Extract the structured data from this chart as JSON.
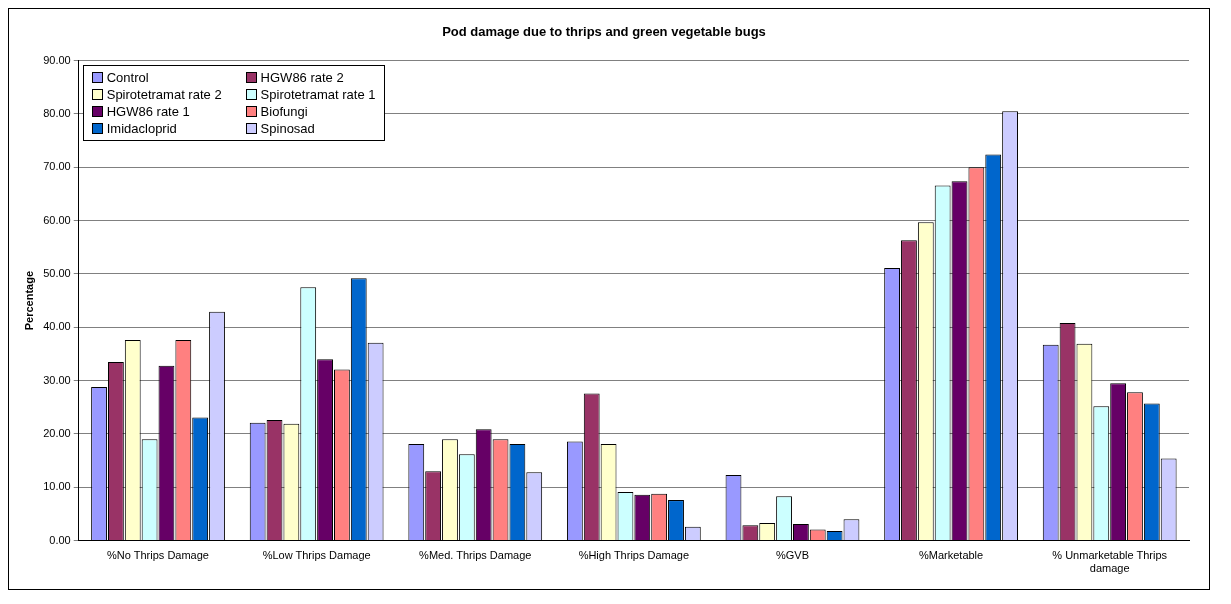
{
  "chart_data": {
    "type": "bar",
    "title": "Pod damage due to thrips and green vegetable bugs",
    "ylabel": "Percentage",
    "categories": [
      "%No Thrips Damage",
      "%Low Thrips Damage",
      "%Med. Thrips Damage",
      "%High Thrips Damage",
      "%GVB",
      "%Marketable",
      "% Unmarketable Thrips damage"
    ],
    "series": [
      {
        "name": "Control",
        "color": "#9999ff",
        "values": [
          28.8,
          22.1,
          18.1,
          18.6,
          12.3,
          51.1,
          36.7
        ]
      },
      {
        "name": "HGW86 rate 2",
        "color": "#993366",
        "values": [
          33.5,
          22.6,
          13.0,
          27.6,
          2.9,
          56.3,
          40.8
        ]
      },
      {
        "name": "Spirotetramat rate 2",
        "color": "#ffffcc",
        "values": [
          37.6,
          21.9,
          19.0,
          18.1,
          3.3,
          59.7,
          36.9
        ]
      },
      {
        "name": "Spirotetramat rate 1",
        "color": "#ccffff",
        "values": [
          19.0,
          47.5,
          16.2,
          9.1,
          8.3,
          66.6,
          25.2
        ]
      },
      {
        "name": "HGW86 rate 1",
        "color": "#660066",
        "values": [
          32.8,
          34.0,
          20.9,
          8.6,
          3.1,
          67.4,
          29.5
        ]
      },
      {
        "name": "Biofungi",
        "color": "#ff8080",
        "values": [
          37.6,
          32.1,
          19.0,
          8.8,
          2.1,
          70.0,
          27.8
        ]
      },
      {
        "name": "Imidacloprid",
        "color": "#0066cc",
        "values": [
          23.1,
          49.2,
          18.1,
          7.6,
          1.8,
          72.4,
          25.7
        ]
      },
      {
        "name": "Spinosad",
        "color": "#ccccff",
        "values": [
          42.9,
          37.1,
          12.8,
          2.6,
          4.0,
          80.5,
          15.4
        ]
      }
    ],
    "ylim": [
      0,
      90
    ],
    "yticks": [
      {
        "value": 0,
        "label": "0.00"
      },
      {
        "value": 10,
        "label": "10.00"
      },
      {
        "value": 20,
        "label": "20.00"
      },
      {
        "value": 30,
        "label": "30.00"
      },
      {
        "value": 40,
        "label": "40.00"
      },
      {
        "value": 50,
        "label": "50.00"
      },
      {
        "value": 60,
        "label": "60.00"
      },
      {
        "value": 70,
        "label": "70.00"
      },
      {
        "value": 80,
        "label": "80.00"
      },
      {
        "value": 90,
        "label": "90.00"
      }
    ],
    "grid": "y",
    "legend": "top left"
  }
}
